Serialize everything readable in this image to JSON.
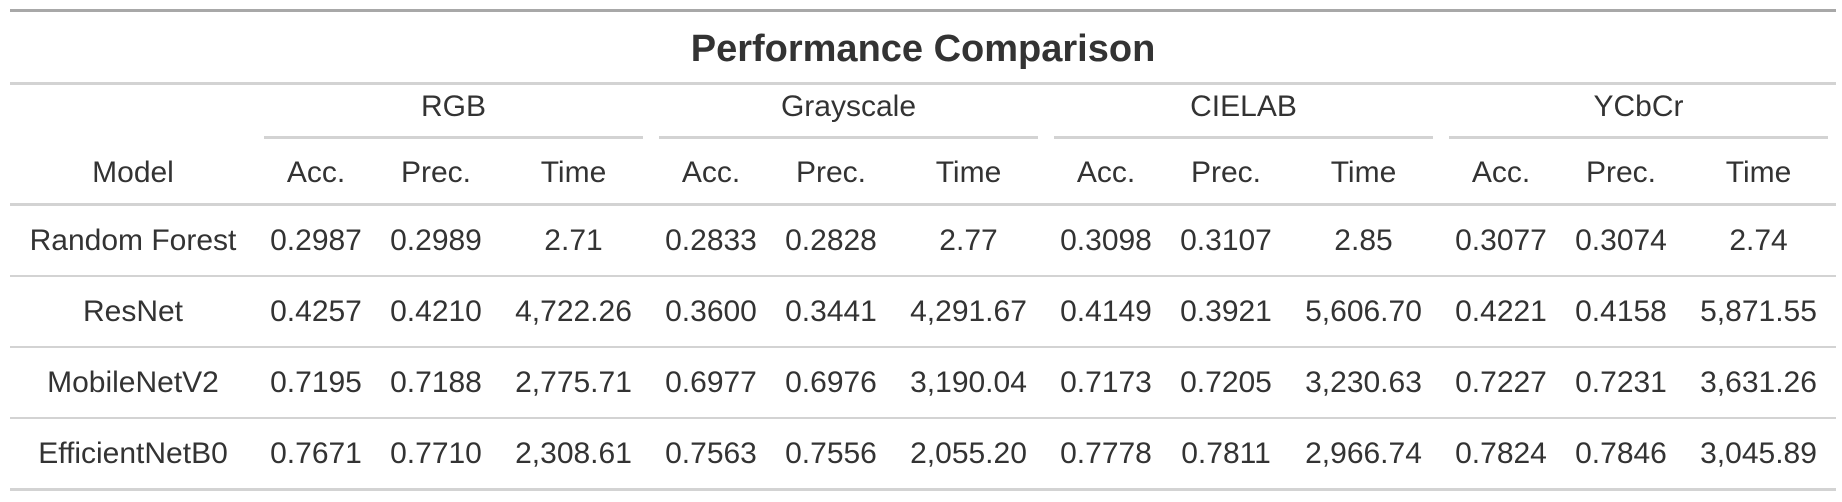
{
  "table": {
    "title": "Performance Comparison",
    "model_header": "Model",
    "groups": [
      {
        "label": "RGB",
        "columns": [
          "Acc.",
          "Prec.",
          "Time"
        ]
      },
      {
        "label": "Grayscale",
        "columns": [
          "Acc.",
          "Prec.",
          "Time"
        ]
      },
      {
        "label": "CIELAB",
        "columns": [
          "Acc.",
          "Prec.",
          "Time"
        ]
      },
      {
        "label": "YCbCr",
        "columns": [
          "Acc.",
          "Prec.",
          "Time"
        ]
      }
    ],
    "rows": [
      {
        "model": "Random Forest",
        "values": [
          "0.2987",
          "0.2989",
          "2.71",
          "0.2833",
          "0.2828",
          "2.77",
          "0.3098",
          "0.3107",
          "2.85",
          "0.3077",
          "0.3074",
          "2.74"
        ]
      },
      {
        "model": "ResNet",
        "values": [
          "0.4257",
          "0.4210",
          "4,722.26",
          "0.3600",
          "0.3441",
          "4,291.67",
          "0.4149",
          "0.3921",
          "5,606.70",
          "0.4221",
          "0.4158",
          "5,871.55"
        ]
      },
      {
        "model": "MobileNetV2",
        "values": [
          "0.7195",
          "0.7188",
          "2,775.71",
          "0.6977",
          "0.6976",
          "3,190.04",
          "0.7173",
          "0.7205",
          "3,230.63",
          "0.7227",
          "0.7231",
          "3,631.26"
        ]
      },
      {
        "model": "EfficientNetB0",
        "values": [
          "0.7671",
          "0.7710",
          "2,308.61",
          "0.7563",
          "0.7556",
          "2,055.20",
          "0.7778",
          "0.7811",
          "2,966.74",
          "0.7824",
          "0.7846",
          "3,045.89"
        ]
      }
    ]
  },
  "colors": {
    "text": "#333333",
    "top_rule": "#a8a8a8",
    "rule": "#d3d3d3"
  }
}
